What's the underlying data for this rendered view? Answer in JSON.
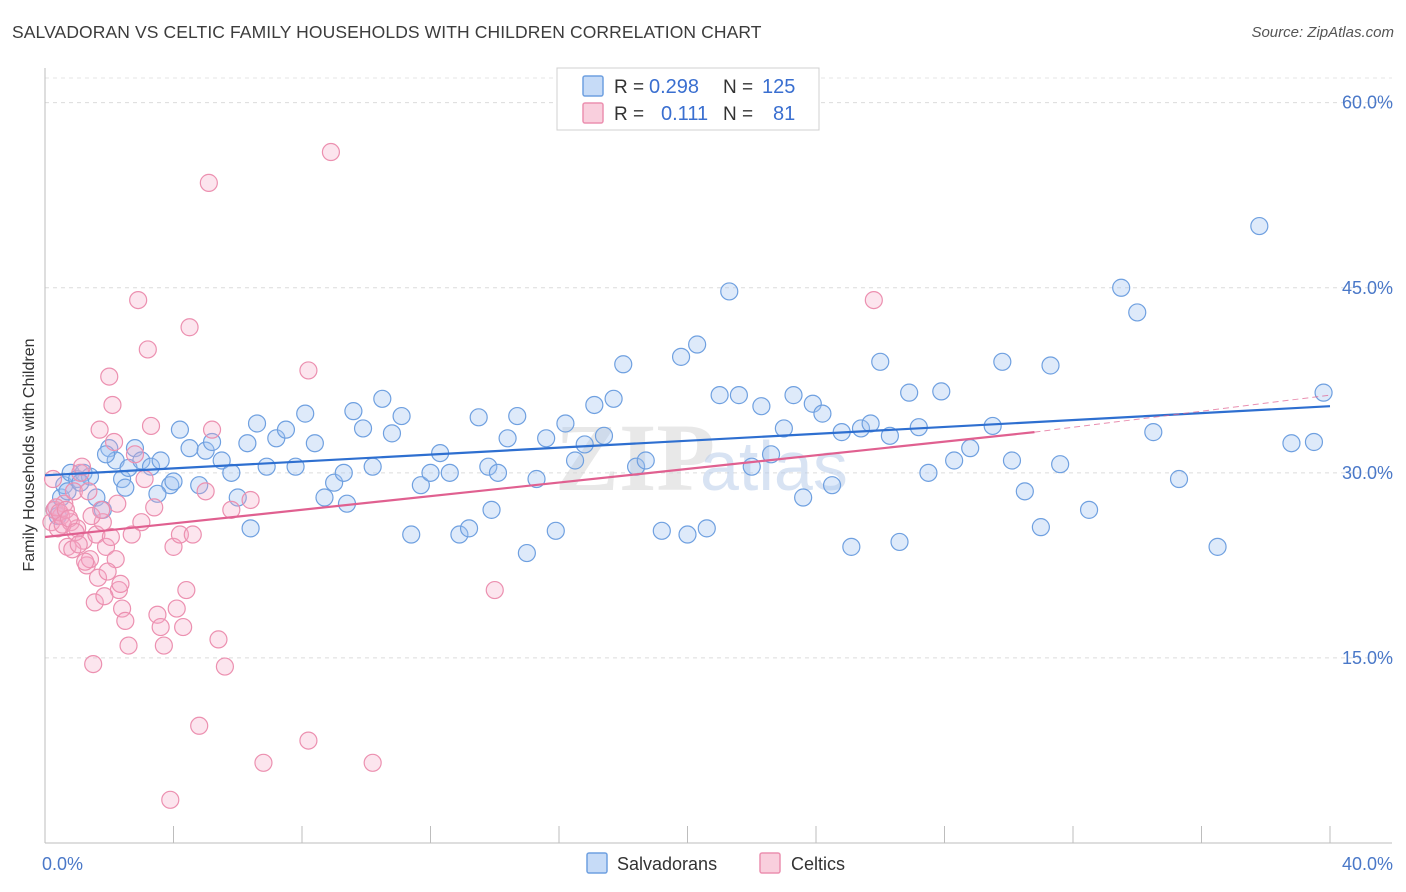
{
  "title": "SALVADORAN VS CELTIC FAMILY HOUSEHOLDS WITH CHILDREN CORRELATION CHART",
  "source": "Source: ZipAtlas.com",
  "watermark": {
    "zip": "ZIP",
    "atlas": "atlas"
  },
  "chart_data": {
    "type": "scatter",
    "ylabel": "Family Households with Children",
    "xlim": [
      0,
      40
    ],
    "ylim": [
      0,
      62
    ],
    "x_tick_labels": [
      {
        "value": 0,
        "label": "0.0%"
      },
      {
        "value": 40,
        "label": "40.0%"
      }
    ],
    "y_tick_labels": [
      {
        "value": 15,
        "label": "15.0%"
      },
      {
        "value": 30,
        "label": "30.0%"
      },
      {
        "value": 45,
        "label": "45.0%"
      },
      {
        "value": 60,
        "label": "60.0%"
      }
    ],
    "grid": true,
    "legend": {
      "position": "top-center",
      "rows": [
        {
          "r_label": "R =",
          "r": "0.298",
          "n_label": "N =",
          "n": "125",
          "color": "#6fa0e0"
        },
        {
          "r_label": "R =",
          "r": "0.111",
          "n_label": "N =",
          "n": "81",
          "color": "#ec90b0"
        }
      ]
    },
    "series": [
      {
        "name": "Salvadorans",
        "color": "#6fa0e0",
        "trend": {
          "x": [
            0,
            40
          ],
          "y": [
            29.8,
            35.4
          ],
          "color": "#2e6fd0"
        },
        "points": [
          [
            0.3,
            27
          ],
          [
            0.5,
            28
          ],
          [
            0.6,
            29
          ],
          [
            0.8,
            30
          ],
          [
            1.0,
            29.5
          ],
          [
            1.2,
            30
          ],
          [
            1.4,
            29.7
          ],
          [
            1.6,
            28
          ],
          [
            1.8,
            27
          ],
          [
            2.0,
            32
          ],
          [
            2.2,
            31
          ],
          [
            2.4,
            29.5
          ],
          [
            2.6,
            30.4
          ],
          [
            2.8,
            32
          ],
          [
            3.0,
            31
          ],
          [
            3.3,
            30.5
          ],
          [
            3.6,
            31
          ],
          [
            3.9,
            29
          ],
          [
            4.2,
            33.5
          ],
          [
            4.5,
            32
          ],
          [
            4.8,
            29
          ],
          [
            5.0,
            31.8
          ],
          [
            5.2,
            32.5
          ],
          [
            5.5,
            31
          ],
          [
            5.8,
            30
          ],
          [
            6.0,
            28
          ],
          [
            6.3,
            32.4
          ],
          [
            6.6,
            34
          ],
          [
            6.9,
            30.5
          ],
          [
            7.2,
            32.8
          ],
          [
            7.5,
            33.5
          ],
          [
            7.8,
            30.5
          ],
          [
            8.1,
            34.8
          ],
          [
            8.4,
            32.4
          ],
          [
            8.7,
            28
          ],
          [
            9.0,
            29.2
          ],
          [
            9.3,
            30
          ],
          [
            9.6,
            35
          ],
          [
            9.9,
            33.6
          ],
          [
            10.2,
            30.5
          ],
          [
            10.5,
            36
          ],
          [
            10.8,
            33.2
          ],
          [
            11.1,
            34.6
          ],
          [
            11.4,
            25
          ],
          [
            11.7,
            29
          ],
          [
            12.0,
            30
          ],
          [
            12.3,
            31.6
          ],
          [
            12.6,
            30
          ],
          [
            12.9,
            25
          ],
          [
            13.2,
            25.5
          ],
          [
            13.5,
            34.5
          ],
          [
            13.8,
            30.5
          ],
          [
            14.1,
            30
          ],
          [
            14.4,
            32.8
          ],
          [
            14.7,
            34.6
          ],
          [
            15.0,
            23.5
          ],
          [
            15.3,
            29.5
          ],
          [
            15.6,
            32.8
          ],
          [
            15.9,
            25.3
          ],
          [
            16.2,
            34
          ],
          [
            16.5,
            31
          ],
          [
            16.8,
            32.3
          ],
          [
            17.1,
            35.5
          ],
          [
            17.4,
            33
          ],
          [
            17.7,
            36
          ],
          [
            18.0,
            38.8
          ],
          [
            18.4,
            30.5
          ],
          [
            18.7,
            31
          ],
          [
            19.2,
            25.3
          ],
          [
            19.8,
            39.4
          ],
          [
            20.0,
            25
          ],
          [
            20.3,
            40.4
          ],
          [
            20.6,
            25.5
          ],
          [
            21.0,
            36.3
          ],
          [
            21.3,
            44.7
          ],
          [
            21.6,
            36.3
          ],
          [
            22.0,
            30.5
          ],
          [
            22.3,
            35.4
          ],
          [
            22.6,
            31.5
          ],
          [
            23.0,
            33.6
          ],
          [
            23.3,
            36.3
          ],
          [
            23.6,
            28
          ],
          [
            23.9,
            35.6
          ],
          [
            24.2,
            34.8
          ],
          [
            24.5,
            29
          ],
          [
            24.8,
            33.3
          ],
          [
            25.1,
            24
          ],
          [
            25.4,
            33.6
          ],
          [
            25.7,
            34
          ],
          [
            26.0,
            39
          ],
          [
            26.3,
            33
          ],
          [
            26.6,
            24.4
          ],
          [
            26.9,
            36.5
          ],
          [
            27.2,
            33.7
          ],
          [
            27.5,
            30
          ],
          [
            27.9,
            36.6
          ],
          [
            28.3,
            31
          ],
          [
            28.8,
            32
          ],
          [
            29.5,
            33.8
          ],
          [
            29.8,
            39
          ],
          [
            30.1,
            31
          ],
          [
            30.5,
            28.5
          ],
          [
            31.0,
            25.6
          ],
          [
            31.3,
            38.7
          ],
          [
            31.6,
            30.7
          ],
          [
            32.5,
            27
          ],
          [
            33.5,
            45
          ],
          [
            34.0,
            43
          ],
          [
            34.5,
            33.3
          ],
          [
            35.3,
            29.5
          ],
          [
            36.5,
            24
          ],
          [
            37.8,
            50
          ],
          [
            38.8,
            32.4
          ],
          [
            39.5,
            32.5
          ],
          [
            39.8,
            36.5
          ],
          [
            0.4,
            26.5
          ],
          [
            0.7,
            28.5
          ],
          [
            1.1,
            29.2
          ],
          [
            1.9,
            31.5
          ],
          [
            2.5,
            28.8
          ],
          [
            3.5,
            28.3
          ],
          [
            4.0,
            29.3
          ],
          [
            6.4,
            25.5
          ],
          [
            9.4,
            27.5
          ],
          [
            13.9,
            27
          ]
        ]
      },
      {
        "name": "Celtics",
        "color": "#ec90b0",
        "trend": {
          "x": [
            0,
            30.8
          ],
          "y": [
            24.8,
            33.3
          ],
          "color": "#e06090",
          "dash_x": [
            30.8,
            40
          ],
          "dash_y": [
            33.3,
            36.3
          ]
        },
        "points": [
          [
            0.2,
            26
          ],
          [
            0.3,
            27
          ],
          [
            0.4,
            25.5
          ],
          [
            0.5,
            26.5
          ],
          [
            0.6,
            27.5
          ],
          [
            0.7,
            24
          ],
          [
            0.8,
            26
          ],
          [
            0.9,
            28.5
          ],
          [
            1.0,
            25.5
          ],
          [
            1.1,
            30
          ],
          [
            1.2,
            24.5
          ],
          [
            1.3,
            22.5
          ],
          [
            1.4,
            23
          ],
          [
            1.5,
            14.5
          ],
          [
            1.6,
            25
          ],
          [
            1.7,
            33.5
          ],
          [
            1.8,
            26
          ],
          [
            1.9,
            24
          ],
          [
            2.0,
            37.8
          ],
          [
            2.1,
            35.5
          ],
          [
            2.2,
            23
          ],
          [
            2.3,
            20.5
          ],
          [
            2.4,
            19
          ],
          [
            2.5,
            18
          ],
          [
            2.6,
            16
          ],
          [
            2.7,
            25
          ],
          [
            2.8,
            31.5
          ],
          [
            2.9,
            44
          ],
          [
            3.0,
            26
          ],
          [
            3.1,
            29.5
          ],
          [
            3.2,
            40
          ],
          [
            3.3,
            33.8
          ],
          [
            3.4,
            27.2
          ],
          [
            3.5,
            18.5
          ],
          [
            3.6,
            17.5
          ],
          [
            3.7,
            16
          ],
          [
            3.9,
            3.5
          ],
          [
            4.0,
            24
          ],
          [
            4.1,
            19
          ],
          [
            4.2,
            25
          ],
          [
            4.3,
            17.5
          ],
          [
            4.4,
            20.5
          ],
          [
            4.5,
            41.8
          ],
          [
            4.6,
            25
          ],
          [
            4.8,
            9.5
          ],
          [
            5.0,
            28.5
          ],
          [
            5.1,
            53.5
          ],
          [
            5.2,
            33.5
          ],
          [
            5.4,
            16.5
          ],
          [
            5.6,
            14.3
          ],
          [
            5.8,
            27
          ],
          [
            6.4,
            27.8
          ],
          [
            6.8,
            6.5
          ],
          [
            8.2,
            38.3
          ],
          [
            8.2,
            8.3
          ],
          [
            8.9,
            56
          ],
          [
            10.2,
            6.5
          ],
          [
            14.0,
            20.5
          ],
          [
            25.8,
            44
          ],
          [
            0.25,
            29.5
          ],
          [
            0.35,
            27.2
          ],
          [
            0.45,
            26.8
          ],
          [
            0.55,
            25.8
          ],
          [
            0.65,
            27
          ],
          [
            0.75,
            26.3
          ],
          [
            0.85,
            23.8
          ],
          [
            0.95,
            25.2
          ],
          [
            1.05,
            24.2
          ],
          [
            1.15,
            30.5
          ],
          [
            1.25,
            22.8
          ],
          [
            1.35,
            28.5
          ],
          [
            1.45,
            26.5
          ],
          [
            1.55,
            19.5
          ],
          [
            1.65,
            21.5
          ],
          [
            1.75,
            27
          ],
          [
            1.85,
            20
          ],
          [
            1.95,
            22
          ],
          [
            2.05,
            24.8
          ],
          [
            2.15,
            32.5
          ],
          [
            2.25,
            27.5
          ],
          [
            2.35,
            21
          ]
        ]
      }
    ]
  },
  "bottom_legend": [
    {
      "label": "Salvadorans",
      "color": "#6fa0e0"
    },
    {
      "label": "Celtics",
      "color": "#ec90b0"
    }
  ]
}
